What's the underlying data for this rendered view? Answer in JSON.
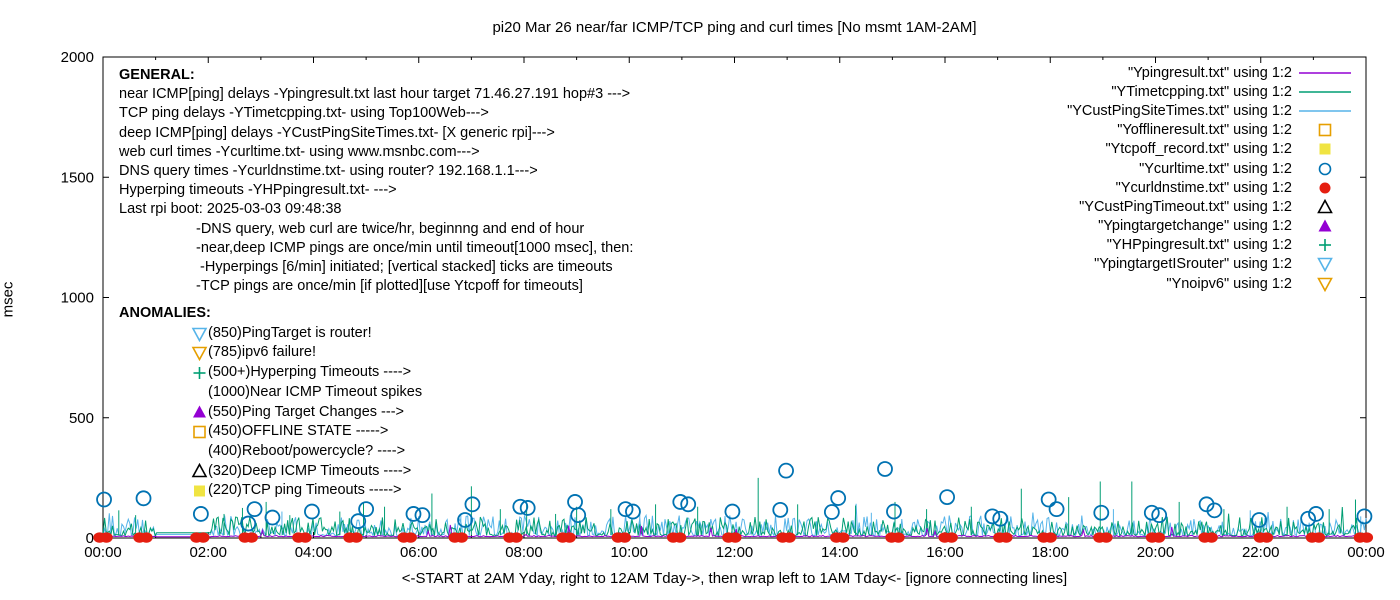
{
  "title": "pi20 Mar 26  near/far ICMP/TCP ping and curl times [No msmt 1AM-2AM]",
  "y_axis": {
    "label": "msec",
    "ticks": [
      0,
      500,
      1000,
      1500,
      2000
    ],
    "range": [
      0,
      2000
    ]
  },
  "x_axis": {
    "tick_labels": [
      "00:00",
      "02:00",
      "04:00",
      "06:00",
      "08:00",
      "10:00",
      "12:00",
      "14:00",
      "16:00",
      "18:00",
      "20:00",
      "22:00",
      "00:00"
    ],
    "tick_hours": [
      0,
      2,
      4,
      6,
      8,
      10,
      12,
      14,
      16,
      18,
      20,
      22,
      24
    ],
    "minor_tick_every_hours": 1,
    "range_hours": [
      0,
      24
    ],
    "caption": "<-START at 2AM Yday, right to 12AM Tday->, then wrap left to 1AM Tday<- [ignore connecting lines]"
  },
  "general": {
    "heading": "GENERAL:",
    "lines": [
      "near ICMP[ping] delays -Ypingresult.txt last hour target 71.46.27.191 hop#3 --->",
      "TCP ping delays -YTimetcpping.txt- using Top100Web--->",
      "deep ICMP[ping] delays -YCustPingSiteTimes.txt- [X generic rpi]--->",
      "web curl times -Ycurltime.txt- using www.msnbc.com--->",
      "DNS query times -Ycurldnstime.txt- using router? 192.168.1.1--->",
      "Hyperping timeouts -YHPpingresult.txt- --->",
      "Last rpi boot: 2025-03-03 09:48:38"
    ],
    "indented_lines": [
      "-DNS query, web curl are twice/hr, beginnng and end of hour",
      "-near,deep ICMP pings are once/min until timeout[1000 msec], then:",
      " -Hyperpings [6/min] initiated; [vertical stacked] ticks are timeouts",
      "-TCP pings are once/min [if plotted][use Ytcpoff for timeouts]"
    ]
  },
  "anomalies": {
    "heading": "ANOMALIES:",
    "items": [
      {
        "marker": "triangle-down-open",
        "color": "#56b4e9",
        "text": "(850)PingTarget is router!"
      },
      {
        "marker": "triangle-down-open",
        "color": "#e69f00",
        "text": "(785)ipv6 failure!"
      },
      {
        "marker": "plus",
        "color": "#009e73",
        "text": "(500+)Hyperping Timeouts ---->"
      },
      {
        "marker": "none",
        "color": "",
        "text": "(1000)Near ICMP Timeout spikes"
      },
      {
        "marker": "triangle-up-filled",
        "color": "#9400d3",
        "text": "(550)Ping Target Changes --->"
      },
      {
        "marker": "square-open",
        "color": "#e69f00",
        "text": "(450)OFFLINE STATE ----->"
      },
      {
        "marker": "none",
        "color": "",
        "text": "(400)Reboot/powercycle? ---->"
      },
      {
        "marker": "triangle-up-open",
        "color": "#000000",
        "text": "(320)Deep ICMP Timeouts ---->"
      },
      {
        "marker": "square-filled",
        "color": "#f0e442",
        "text": "(220)TCP ping Timeouts ----->"
      }
    ]
  },
  "legend": {
    "position": "inside-top-right",
    "entries": [
      {
        "label": "\"Ypingresult.txt\" using 1:2",
        "marker": "line",
        "color": "#9400d3"
      },
      {
        "label": "\"YTimetcpping.txt\" using 1:2",
        "marker": "line",
        "color": "#009e73"
      },
      {
        "label": "\"YCustPingSiteTimes.txt\" using 1:2",
        "marker": "line",
        "color": "#56b4e9"
      },
      {
        "label": "\"Yofflineresult.txt\" using 1:2",
        "marker": "square-open",
        "color": "#e69f00"
      },
      {
        "label": "\"Ytcpoff_record.txt\" using 1:2",
        "marker": "square-filled",
        "color": "#f0e442"
      },
      {
        "label": "\"Ycurltime.txt\" using 1:2",
        "marker": "circle-open",
        "color": "#0072b2"
      },
      {
        "label": "\"Ycurldnstime.txt\" using 1:2",
        "marker": "circle-filled",
        "color": "#e51e10"
      },
      {
        "label": "\"YCustPingTimeout.txt\" using 1:2",
        "marker": "triangle-up-open",
        "color": "#000000"
      },
      {
        "label": "\"Ypingtargetchange\" using 1:2",
        "marker": "triangle-up-filled",
        "color": "#9400d3"
      },
      {
        "label": "\"YHPpingresult.txt\" using 1:2",
        "marker": "plus",
        "color": "#009e73"
      },
      {
        "label": "\"YpingtargetISrouter\" using 1:2",
        "marker": "triangle-down-open",
        "color": "#56b4e9"
      },
      {
        "label": "\"Ynoipv6\" using 1:2",
        "marker": "triangle-down-open",
        "color": "#e69f00"
      }
    ]
  },
  "chart_data": {
    "type": "line+scatter",
    "x_unit": "hours (00:00-24:00)",
    "ylabel": "msec",
    "ylim": [
      0,
      2000
    ],
    "grid": false,
    "no_measurement_gap_hours": [
      1.0,
      2.05
    ],
    "series": [
      {
        "name": "Ypingresult.txt",
        "style": "line",
        "color": "#9400d3",
        "description": "near ICMP ping delay, flat near 0",
        "baseline_msec": 6,
        "noise_amp_msec": 5,
        "gap_value_msec": 5,
        "seed": 11,
        "spikes": []
      },
      {
        "name": "YTimetcpping.txt",
        "style": "line",
        "color": "#009e73",
        "description": "TCP ping delay, noisy 10-90 msec with spikes",
        "baseline_msec": 10,
        "noise_amp_msec": 78,
        "gap_value_msec": 22,
        "seed": 7,
        "spikes": [
          [
            0.3,
            115
          ],
          [
            0.62,
            95
          ],
          [
            2.3,
            100
          ],
          [
            2.65,
            125
          ],
          [
            3.1,
            150
          ],
          [
            3.55,
            95
          ],
          [
            4.5,
            110
          ],
          [
            4.95,
            145
          ],
          [
            5.35,
            130
          ],
          [
            6.25,
            185
          ],
          [
            7.0,
            215
          ],
          [
            7.55,
            120
          ],
          [
            8.05,
            140
          ],
          [
            8.6,
            100
          ],
          [
            9.0,
            130
          ],
          [
            9.65,
            120
          ],
          [
            10.5,
            140
          ],
          [
            11.3,
            130
          ],
          [
            12.45,
            250
          ],
          [
            13.2,
            140
          ],
          [
            14.3,
            135
          ],
          [
            15.05,
            150
          ],
          [
            15.65,
            120
          ],
          [
            16.5,
            130
          ],
          [
            17.45,
            205
          ],
          [
            18.35,
            170
          ],
          [
            18.95,
            235
          ],
          [
            19.55,
            235
          ],
          [
            20.45,
            150
          ],
          [
            21.3,
            120
          ],
          [
            22.5,
            130
          ],
          [
            23.3,
            120
          ],
          [
            23.8,
            160
          ]
        ]
      },
      {
        "name": "YCustPingSiteTimes.txt",
        "style": "line",
        "color": "#56b4e9",
        "description": "deep ICMP ping delay, noisy 10-90 msec",
        "baseline_msec": 10,
        "noise_amp_msec": 85,
        "gap_value_msec": 15,
        "seed": 23,
        "spikes": [
          [
            3.4,
            110
          ],
          [
            6.8,
            100
          ],
          [
            10.2,
            110
          ],
          [
            14.6,
            105
          ],
          [
            19.2,
            120
          ],
          [
            21.8,
            115
          ],
          [
            23.9,
            90
          ]
        ]
      },
      {
        "name": "Ycurltime.txt",
        "style": "points",
        "marker": "circle-open",
        "color": "#0072b2",
        "description": "web curl times, twice per hour",
        "points": [
          [
            0.02,
            160
          ],
          [
            0.77,
            165
          ],
          [
            1.86,
            100
          ],
          [
            2.76,
            60
          ],
          [
            2.88,
            120
          ],
          [
            3.22,
            85
          ],
          [
            3.97,
            110
          ],
          [
            4.85,
            70
          ],
          [
            5.0,
            120
          ],
          [
            5.9,
            100
          ],
          [
            6.07,
            95
          ],
          [
            6.88,
            75
          ],
          [
            7.02,
            140
          ],
          [
            7.93,
            130
          ],
          [
            8.07,
            125
          ],
          [
            8.97,
            150
          ],
          [
            9.03,
            95
          ],
          [
            9.93,
            120
          ],
          [
            10.07,
            110
          ],
          [
            10.97,
            150
          ],
          [
            11.12,
            140
          ],
          [
            11.96,
            110
          ],
          [
            12.87,
            117
          ],
          [
            12.98,
            280
          ],
          [
            13.85,
            108
          ],
          [
            13.97,
            166
          ],
          [
            14.86,
            287
          ],
          [
            15.03,
            110
          ],
          [
            16.04,
            170
          ],
          [
            16.9,
            90
          ],
          [
            17.05,
            80
          ],
          [
            17.97,
            160
          ],
          [
            18.12,
            120
          ],
          [
            18.97,
            105
          ],
          [
            19.93,
            105
          ],
          [
            20.07,
            95
          ],
          [
            20.97,
            140
          ],
          [
            21.12,
            115
          ],
          [
            21.97,
            75
          ],
          [
            22.9,
            80
          ],
          [
            23.05,
            100
          ],
          [
            23.97,
            90
          ]
        ]
      },
      {
        "name": "Ycurldnstime.txt",
        "style": "points",
        "marker": "circle-filled",
        "color": "#e51e10",
        "description": "DNS query times, ~0 msec pairs each hour",
        "value_msec": 2,
        "hours": [
          0,
          0.76,
          1.84,
          2.76,
          3.78,
          4.75,
          5.78,
          6.75,
          7.79,
          8.8,
          9.85,
          10.9,
          11.95,
          12.98,
          14.0,
          15.05,
          16.06,
          17.1,
          17.94,
          19.0,
          20.0,
          21.0,
          22.05,
          23.04,
          23.95
        ]
      }
    ]
  }
}
